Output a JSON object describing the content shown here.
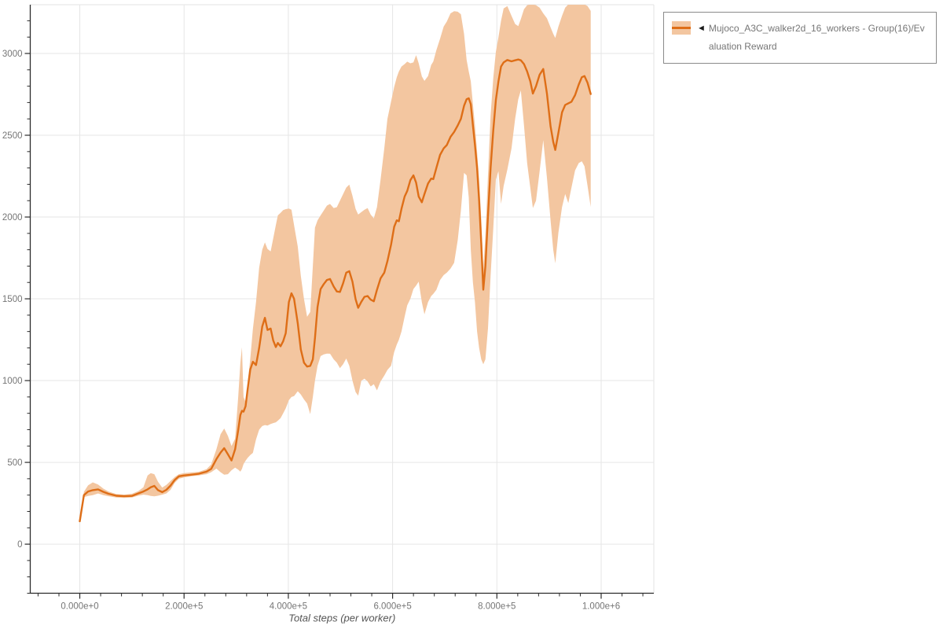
{
  "page": {
    "background": "#ffffff"
  },
  "legend": {
    "marker_glyph": "◄",
    "text": "Mujoco_A3C_walker2d_16_workers - Group(16)/Evaluation Reward"
  },
  "chart_data": {
    "type": "line",
    "title": "",
    "xlabel": "Total steps (per worker)",
    "ylabel": "",
    "grid": true,
    "legend_position": "top-right",
    "xlim": [
      -95000,
      1101000
    ],
    "ylim": [
      -300,
      3298
    ],
    "x_ticks": [
      0,
      200000,
      400000,
      600000,
      800000,
      1000000
    ],
    "x_tick_labels": [
      "0.000e+0",
      "2.000e+5",
      "4.000e+5",
      "6.000e+5",
      "8.000e+5",
      "1.000e+6"
    ],
    "x_minor_step": 40000,
    "y_ticks": [
      0,
      500,
      1000,
      1500,
      2000,
      2500,
      3000
    ],
    "y_tick_labels": [
      "0",
      "500",
      "1000",
      "1500",
      "2000",
      "2500",
      "3000"
    ],
    "y_minor_step": 100,
    "colors": {
      "line": "#de6e17",
      "band": "#f3c6a0",
      "grid": "#e6e6e6",
      "axis": "#2b2b2b",
      "tick_label": "#757575",
      "axis_title": "#555555",
      "plot_border": "#e3e3e3"
    },
    "series": [
      {
        "name": "Mujoco_A3C_walker2d_16_workers - Group(16)/Evaluation Reward",
        "note": "points are [steps, band_low, mean, band_high]",
        "points": [
          [
            0,
            135,
            140,
            148
          ],
          [
            8000,
            288,
            300,
            320
          ],
          [
            16000,
            295,
            322,
            360
          ],
          [
            25000,
            300,
            330,
            378
          ],
          [
            35000,
            310,
            335,
            365
          ],
          [
            45000,
            300,
            320,
            340
          ],
          [
            55000,
            293,
            308,
            322
          ],
          [
            70000,
            285,
            296,
            306
          ],
          [
            85000,
            283,
            293,
            303
          ],
          [
            100000,
            285,
            295,
            308
          ],
          [
            112000,
            296,
            310,
            324
          ],
          [
            122000,
            303,
            322,
            348
          ],
          [
            130000,
            300,
            335,
            420
          ],
          [
            136000,
            295,
            348,
            434
          ],
          [
            143000,
            292,
            356,
            428
          ],
          [
            150000,
            296,
            330,
            382
          ],
          [
            158000,
            303,
            318,
            346
          ],
          [
            166000,
            310,
            332,
            362
          ],
          [
            174000,
            332,
            358,
            386
          ],
          [
            182000,
            375,
            392,
            410
          ],
          [
            190000,
            400,
            415,
            428
          ],
          [
            200000,
            408,
            420,
            434
          ],
          [
            212000,
            415,
            424,
            438
          ],
          [
            228000,
            420,
            430,
            442
          ],
          [
            243000,
            428,
            443,
            458
          ],
          [
            252000,
            440,
            460,
            487
          ],
          [
            262000,
            462,
            520,
            580
          ],
          [
            270000,
            440,
            560,
            672
          ],
          [
            277000,
            425,
            587,
            707
          ],
          [
            284000,
            428,
            550,
            662
          ],
          [
            291000,
            452,
            512,
            600
          ],
          [
            298000,
            468,
            580,
            645
          ],
          [
            304000,
            455,
            700,
            905
          ],
          [
            308000,
            443,
            790,
            1110
          ],
          [
            311000,
            460,
            815,
            1204
          ],
          [
            314000,
            490,
            810,
            900
          ],
          [
            318000,
            510,
            843,
            870
          ],
          [
            322000,
            528,
            950,
            990
          ],
          [
            327000,
            545,
            1068,
            1135
          ],
          [
            332000,
            558,
            1115,
            1315
          ],
          [
            338000,
            640,
            1095,
            1480
          ],
          [
            344000,
            700,
            1200,
            1690
          ],
          [
            350000,
            722,
            1330,
            1800
          ],
          [
            355000,
            728,
            1384,
            1845
          ],
          [
            360000,
            725,
            1310,
            1805
          ],
          [
            366000,
            735,
            1318,
            1790
          ],
          [
            371000,
            740,
            1245,
            1870
          ],
          [
            376000,
            745,
            1205,
            1950
          ],
          [
            380000,
            755,
            1230,
            2010
          ],
          [
            385000,
            770,
            1210,
            2025
          ],
          [
            390000,
            800,
            1240,
            2042
          ],
          [
            395000,
            830,
            1290,
            2048
          ],
          [
            401000,
            880,
            1480,
            2052
          ],
          [
            406000,
            900,
            1534,
            2045
          ],
          [
            411000,
            905,
            1500,
            1950
          ],
          [
            418000,
            935,
            1350,
            1820
          ],
          [
            424000,
            915,
            1190,
            1640
          ],
          [
            430000,
            885,
            1110,
            1500
          ],
          [
            436000,
            860,
            1086,
            1390
          ],
          [
            442000,
            795,
            1090,
            1420
          ],
          [
            447000,
            900,
            1130,
            1700
          ],
          [
            451000,
            1000,
            1260,
            1935
          ],
          [
            456000,
            1090,
            1450,
            1980
          ],
          [
            462000,
            1150,
            1560,
            2010
          ],
          [
            468000,
            1160,
            1590,
            2040
          ],
          [
            474000,
            1165,
            1615,
            2070
          ],
          [
            480000,
            1164,
            1621,
            2080
          ],
          [
            487000,
            1130,
            1575,
            2055
          ],
          [
            493000,
            1110,
            1545,
            2060
          ],
          [
            499000,
            1076,
            1542,
            2100
          ],
          [
            505000,
            1100,
            1595,
            2140
          ],
          [
            511000,
            1135,
            1660,
            2180
          ],
          [
            517000,
            1090,
            1669,
            2198
          ],
          [
            523000,
            1000,
            1605,
            2130
          ],
          [
            529000,
            930,
            1498,
            2050
          ],
          [
            534000,
            908,
            1445,
            2015
          ],
          [
            540000,
            1000,
            1482,
            2030
          ],
          [
            546000,
            1012,
            1512,
            2045
          ],
          [
            552000,
            995,
            1517,
            2055
          ],
          [
            558000,
            964,
            1495,
            2015
          ],
          [
            564000,
            978,
            1485,
            1992
          ],
          [
            570000,
            940,
            1555,
            2060
          ],
          [
            577000,
            995,
            1625,
            2230
          ],
          [
            584000,
            1030,
            1660,
            2420
          ],
          [
            590000,
            1065,
            1730,
            2600
          ],
          [
            597000,
            1090,
            1830,
            2705
          ],
          [
            603000,
            1175,
            1940,
            2795
          ],
          [
            608000,
            1220,
            1980,
            2855
          ],
          [
            612000,
            1250,
            1974,
            2890
          ],
          [
            617000,
            1300,
            2050,
            2920
          ],
          [
            623000,
            1390,
            2125,
            2935
          ],
          [
            628000,
            1460,
            2159,
            2950
          ],
          [
            634000,
            1500,
            2225,
            2940
          ],
          [
            640000,
            1560,
            2255,
            2945
          ],
          [
            645000,
            1581,
            2210,
            2990
          ],
          [
            650000,
            1605,
            2125,
            2940
          ],
          [
            656000,
            1480,
            2090,
            2860
          ],
          [
            661000,
            1405,
            2140,
            2832
          ],
          [
            668000,
            1480,
            2205,
            2862
          ],
          [
            674000,
            1517,
            2235,
            2930
          ],
          [
            678000,
            1530,
            2232,
            2951
          ],
          [
            684000,
            1555,
            2300,
            3020
          ],
          [
            691000,
            1615,
            2380,
            3090
          ],
          [
            698000,
            1645,
            2420,
            3165
          ],
          [
            704000,
            1660,
            2440,
            3195
          ],
          [
            711000,
            1685,
            2490,
            3245
          ],
          [
            718000,
            1720,
            2520,
            3258
          ],
          [
            725000,
            1860,
            2560,
            3255
          ],
          [
            731000,
            2040,
            2600,
            3240
          ],
          [
            737000,
            2270,
            2680,
            3120
          ],
          [
            742000,
            2255,
            2720,
            2960
          ],
          [
            746000,
            2120,
            2726,
            2890
          ],
          [
            750000,
            1800,
            2690,
            2830
          ],
          [
            754000,
            1600,
            2560,
            2690
          ],
          [
            758000,
            1480,
            2440,
            2560
          ],
          [
            762000,
            1300,
            2300,
            2400
          ],
          [
            766000,
            1200,
            2100,
            2230
          ],
          [
            770000,
            1130,
            1840,
            1990
          ],
          [
            774000,
            1100,
            1556,
            1680
          ],
          [
            778000,
            1130,
            1700,
            1890
          ],
          [
            783000,
            1320,
            2010,
            2260
          ],
          [
            788000,
            1640,
            2300,
            2620
          ],
          [
            793000,
            1930,
            2530,
            2850
          ],
          [
            798000,
            2230,
            2715,
            3010
          ],
          [
            803000,
            2280,
            2830,
            3100
          ],
          [
            808000,
            2080,
            2920,
            3200
          ],
          [
            813000,
            2190,
            2945,
            3275
          ],
          [
            820000,
            2290,
            2960,
            3290
          ],
          [
            828000,
            2420,
            2952,
            3230
          ],
          [
            835000,
            2600,
            2958,
            3180
          ],
          [
            841000,
            2720,
            2963,
            3167
          ],
          [
            846000,
            2774,
            2958,
            3210
          ],
          [
            852000,
            2560,
            2935,
            3270
          ],
          [
            858000,
            2330,
            2890,
            3295
          ],
          [
            864000,
            2180,
            2830,
            3300
          ],
          [
            869000,
            2055,
            2755,
            3300
          ],
          [
            875000,
            2100,
            2800,
            3295
          ],
          [
            882000,
            2280,
            2870,
            3280
          ],
          [
            889000,
            2470,
            2905,
            3245
          ],
          [
            896000,
            2240,
            2755,
            3215
          ],
          [
            903000,
            1980,
            2555,
            3160
          ],
          [
            908000,
            1800,
            2460,
            3120
          ],
          [
            912000,
            1717,
            2410,
            3095
          ],
          [
            918000,
            1905,
            2515,
            3165
          ],
          [
            925000,
            2060,
            2640,
            3230
          ],
          [
            931000,
            2141,
            2685,
            3280
          ],
          [
            937000,
            2085,
            2695,
            3300
          ],
          [
            943000,
            2180,
            2705,
            3300
          ],
          [
            950000,
            2285,
            2745,
            3300
          ],
          [
            957000,
            2330,
            2810,
            3300
          ],
          [
            963000,
            2341,
            2855,
            3300
          ],
          [
            968000,
            2310,
            2862,
            3300
          ],
          [
            974000,
            2190,
            2820,
            3290
          ],
          [
            980000,
            2061,
            2752,
            3260
          ]
        ]
      }
    ]
  }
}
